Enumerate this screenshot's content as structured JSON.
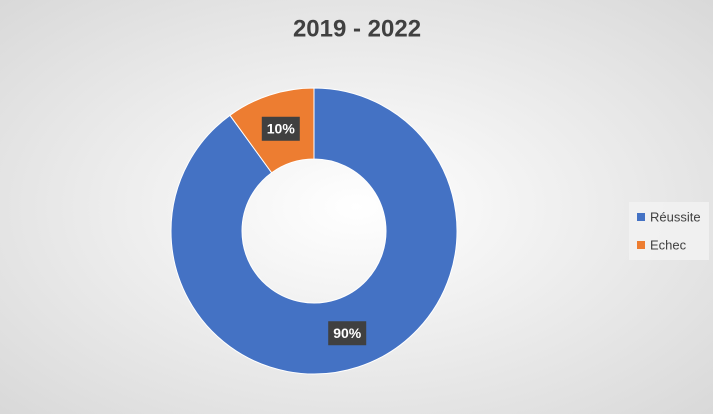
{
  "chart_data": {
    "type": "donut",
    "title": "2019 - 2022",
    "categories": [
      "Réussite",
      "Echec"
    ],
    "values": [
      90,
      10
    ],
    "value_labels": [
      "90%",
      "10%"
    ],
    "colors": [
      "#4472c4",
      "#ed7d31"
    ],
    "legend": "right"
  }
}
